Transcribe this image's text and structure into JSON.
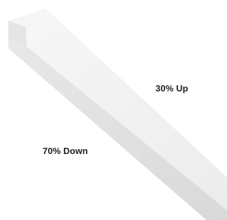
{
  "labels": {
    "up": "30% Up",
    "down": "70% Down"
  },
  "colors": {
    "fixture_top": "#f1f1f1",
    "fixture_side": "#dedede",
    "fixture_end": "#e9e9e9",
    "text": "#1e1e1e"
  }
}
